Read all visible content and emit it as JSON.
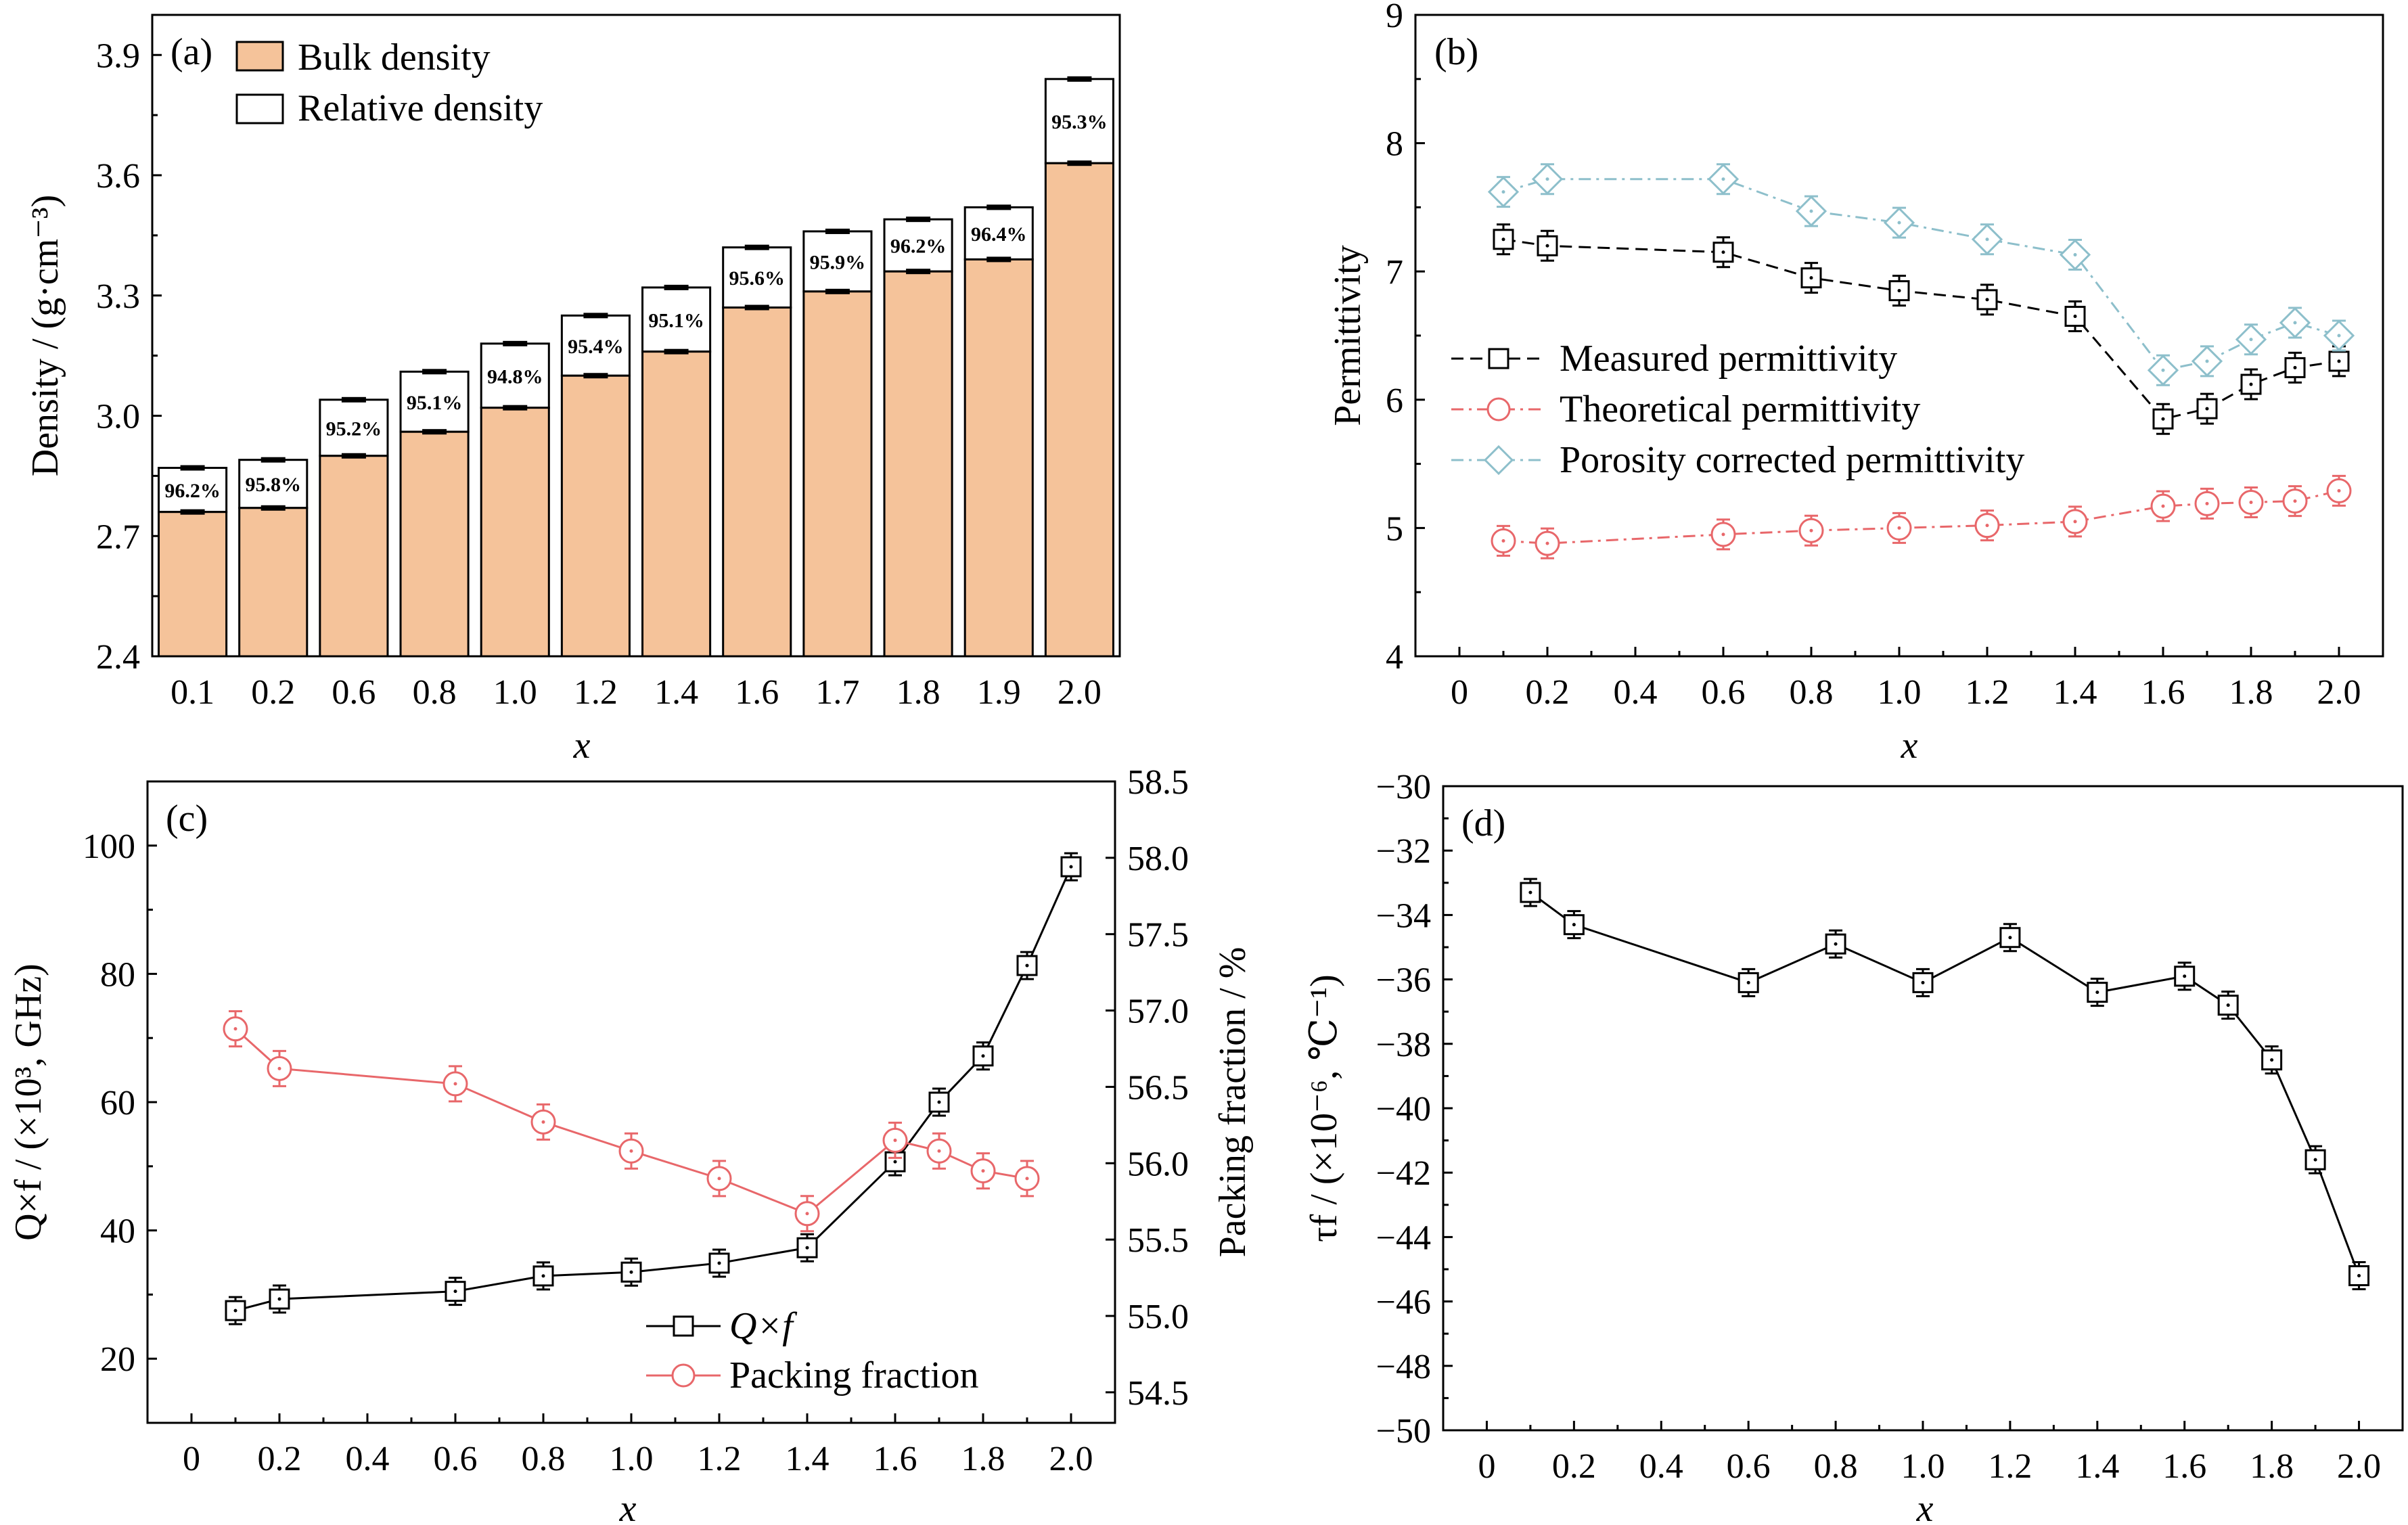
{
  "chart_data": [
    {
      "panel": "(a)",
      "type": "bar",
      "categories": [
        "0.1",
        "0.2",
        "0.6",
        "0.8",
        "1.0",
        "1.2",
        "1.4",
        "1.6",
        "1.7",
        "1.8",
        "1.9",
        "2.0"
      ],
      "series": [
        {
          "name": "Bulk density",
          "values": [
            2.76,
            2.77,
            2.9,
            2.96,
            3.02,
            3.1,
            3.16,
            3.27,
            3.31,
            3.36,
            3.39,
            3.63
          ],
          "color": "#f5c39a"
        },
        {
          "name": "Relative density",
          "values": [
            2.87,
            2.89,
            3.04,
            3.11,
            3.18,
            3.25,
            3.32,
            3.42,
            3.46,
            3.49,
            3.52,
            3.84
          ],
          "color": "#ffffff"
        }
      ],
      "bar_labels": [
        "96.2%",
        "95.8%",
        "95.2%",
        "95.1%",
        "94.8%",
        "95.4%",
        "95.1%",
        "95.6%",
        "95.9%",
        "96.2%",
        "96.4%",
        "95.3%"
      ],
      "xlabel": "x",
      "ylabel": "Density / (g·cm⁻³)",
      "ylim": [
        2.4,
        4.0
      ],
      "yticks": [
        "2.4",
        "2.7",
        "3.0",
        "3.3",
        "3.6",
        "3.9"
      ],
      "legend": "top-left"
    },
    {
      "panel": "(b)",
      "type": "line",
      "x": [
        0.1,
        0.2,
        0.6,
        0.8,
        1.0,
        1.2,
        1.4,
        1.6,
        1.7,
        1.8,
        1.9,
        2.0
      ],
      "series": [
        {
          "name": "Measured permittivity",
          "values": [
            7.25,
            7.2,
            7.15,
            6.95,
            6.85,
            6.78,
            6.65,
            5.85,
            5.93,
            6.12,
            6.25,
            6.3
          ],
          "color": "#000000",
          "marker": "square",
          "style": "dashed"
        },
        {
          "name": "Theoretical permittivity",
          "values": [
            4.9,
            4.88,
            4.95,
            4.98,
            5.0,
            5.02,
            5.05,
            5.17,
            5.19,
            5.2,
            5.21,
            5.29
          ],
          "color": "#e8676a",
          "marker": "circle",
          "style": "dashdot"
        },
        {
          "name": "Porosity corrected permittivity",
          "values": [
            7.62,
            7.72,
            7.72,
            7.47,
            7.38,
            7.25,
            7.13,
            6.23,
            6.3,
            6.47,
            6.6,
            6.5
          ],
          "color": "#8dbfcb",
          "marker": "diamond",
          "style": "dashdot"
        }
      ],
      "xlabel": "x",
      "ylabel": "Permittivity",
      "xlim": [
        -0.1,
        2.1
      ],
      "ylim": [
        4,
        9
      ],
      "xticks": [
        "0",
        "0.2",
        "0.4",
        "0.6",
        "0.8",
        "1.0",
        "1.2",
        "1.4",
        "1.6",
        "1.8",
        "2.0"
      ],
      "yticks": [
        "4",
        "5",
        "6",
        "7",
        "8",
        "9"
      ],
      "legend": "center-left"
    },
    {
      "panel": "(c)",
      "type": "line",
      "x": [
        0.1,
        0.2,
        0.6,
        0.8,
        1.0,
        1.2,
        1.4,
        1.6,
        1.7,
        1.8,
        1.9,
        2.0
      ],
      "series": [
        {
          "name": "Q×f",
          "axis": "left",
          "x": [
            0.1,
            0.2,
            0.6,
            0.8,
            1.0,
            1.2,
            1.4,
            1.6,
            1.7,
            1.8,
            1.9,
            2.0
          ],
          "values": [
            27.5,
            29.3,
            30.5,
            32.9,
            33.5,
            34.9,
            37.3,
            50.7,
            60.0,
            67.2,
            81.3,
            96.7
          ],
          "color": "#000000",
          "marker": "square"
        },
        {
          "name": "Packing fraction",
          "axis": "right",
          "x": [
            0.1,
            0.2,
            0.6,
            0.8,
            1.0,
            1.2,
            1.4,
            1.6,
            1.7,
            1.8,
            1.9
          ],
          "values": [
            56.88,
            56.62,
            56.52,
            56.27,
            56.08,
            55.9,
            55.67,
            56.15,
            56.08,
            55.95,
            55.9
          ],
          "color": "#e8676a",
          "marker": "circle"
        }
      ],
      "xlabel": "x",
      "ylabel": "Q×f / (×10³, GHz)",
      "ylabel_right": "Packing fraction / %",
      "xlim": [
        -0.1,
        2.1
      ],
      "ylim": [
        10,
        110
      ],
      "ylim_right": [
        54.3,
        58.5
      ],
      "xticks": [
        "0",
        "0.2",
        "0.4",
        "0.6",
        "0.8",
        "1.0",
        "1.2",
        "1.4",
        "1.6",
        "1.8",
        "2.0"
      ],
      "yticks": [
        "20",
        "40",
        "60",
        "80",
        "100"
      ],
      "yticks_right": [
        "54.5",
        "55.0",
        "55.5",
        "56.0",
        "56.5",
        "57.0",
        "57.5",
        "58.0",
        "58.5"
      ],
      "legend": "bottom-center"
    },
    {
      "panel": "(d)",
      "type": "line",
      "x": [
        0.1,
        0.2,
        0.6,
        0.8,
        1.0,
        1.2,
        1.4,
        1.6,
        1.7,
        1.8,
        1.9,
        2.0
      ],
      "series": [
        {
          "values": [
            -33.3,
            -34.3,
            -36.1,
            -34.9,
            -36.1,
            -34.7,
            -36.4,
            -35.9,
            -36.8,
            -38.5,
            -41.6,
            -45.2
          ],
          "color": "#000000",
          "marker": "square"
        }
      ],
      "xlabel": "x",
      "ylabel": "τf / (×10⁻⁶, ℃⁻¹)",
      "xlim": [
        -0.1,
        2.1
      ],
      "ylim": [
        -50,
        -30
      ],
      "xticks": [
        "0",
        "0.2",
        "0.4",
        "0.6",
        "0.8",
        "1.0",
        "1.2",
        "1.4",
        "1.6",
        "1.8",
        "2.0"
      ],
      "yticks": [
        "-50",
        "-48",
        "-46",
        "-44",
        "-42",
        "-40",
        "-38",
        "-36",
        "-34",
        "-32",
        "-30"
      ],
      "legend": "none"
    }
  ]
}
